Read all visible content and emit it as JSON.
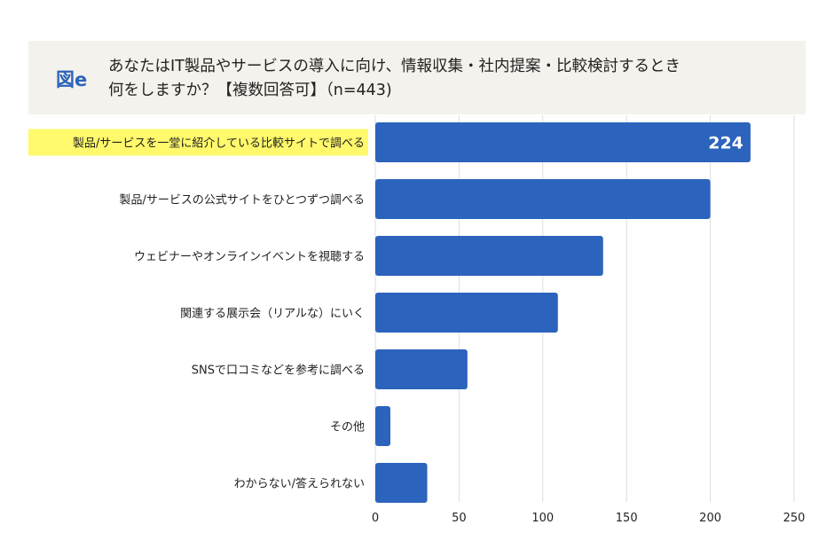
{
  "header": {
    "figure_label": "図e",
    "title_line1": "あなたはIT製品やサービスの導入に向け、情報収集・社内提案・比較検討するとき",
    "title_line2": "何をしますか？【複数回答可】（n=443)"
  },
  "colors": {
    "bar": "#2c63bd",
    "highlight": "#fff96b",
    "header_bg": "#f4f2ec",
    "grid": "#dddddd"
  },
  "chart_data": {
    "type": "bar",
    "orientation": "horizontal",
    "categories": [
      "製品/サービスを一堂に紹介している比較サイトで調べる",
      "製品/サービスの公式サイトをひとつずつ調べる",
      "ウェビナーやオンラインイベントを視聴する",
      "関連する展示会（リアルな）にいく",
      "SNSで口コミなどを参考に調べる",
      "その他",
      "わからない/答えられない"
    ],
    "values": [
      224,
      200,
      136,
      109,
      55,
      9,
      31
    ],
    "data_labels": [
      "224"
    ],
    "highlighted_category": 0,
    "xlim": [
      0,
      250
    ],
    "xticks": [
      "0",
      "50",
      "100",
      "150",
      "200",
      "250"
    ],
    "grid": true
  }
}
